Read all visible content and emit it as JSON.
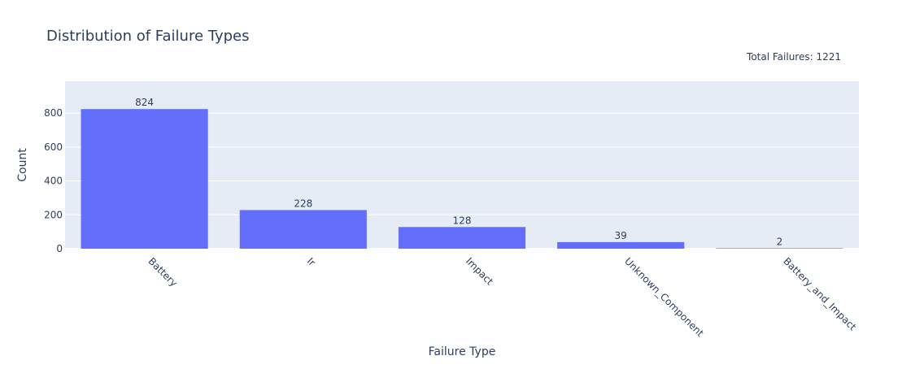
{
  "chart_data": {
    "type": "bar",
    "title": "Distribution of Failure Types",
    "annotation": "Total Failures: 1221",
    "xlabel": "Failure Type",
    "ylabel": "Count",
    "categories": [
      "Battery",
      "Ir",
      "Impact",
      "Unknown_Component",
      "Battery_and_Impact"
    ],
    "values": [
      824,
      228,
      128,
      39,
      2
    ],
    "data_labels": [
      "824",
      "228",
      "128",
      "39",
      "2"
    ],
    "yticks": [
      0,
      200,
      400,
      600,
      800
    ],
    "ylim": [
      0,
      988
    ],
    "grid": true,
    "legend": "none",
    "colors": {
      "bar": "#636efa",
      "plot_bg": "#e5ecf6",
      "grid": "#ffffff",
      "text": "#2a3f5f"
    }
  }
}
